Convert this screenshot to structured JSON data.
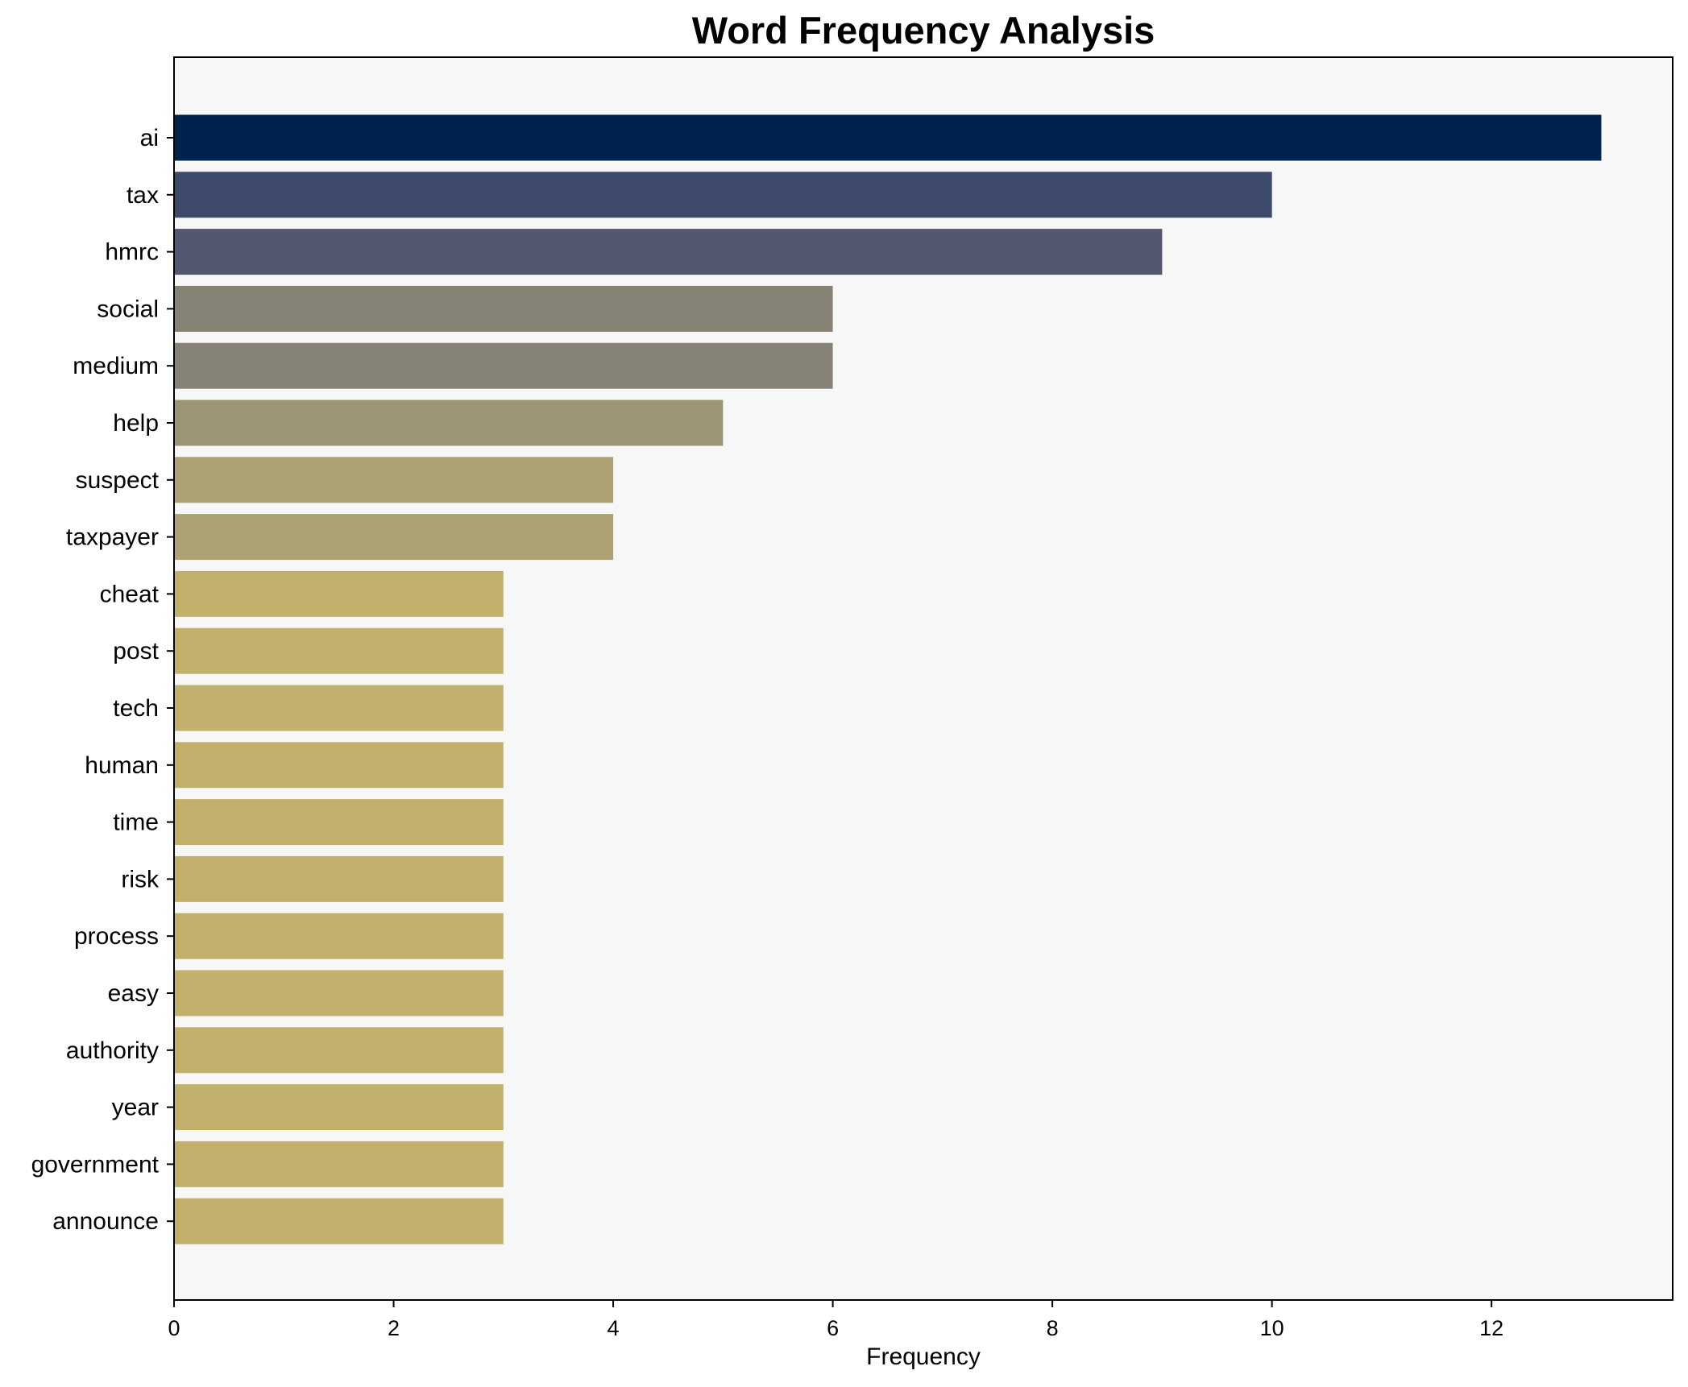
{
  "chart_data": {
    "type": "bar",
    "orientation": "horizontal",
    "title": "Word Frequency Analysis",
    "xlabel": "Frequency",
    "ylabel": "",
    "xlim": [
      0,
      13.65
    ],
    "xticks": [
      0,
      2,
      4,
      6,
      8,
      10,
      12
    ],
    "grid": false,
    "legend": "none",
    "plot_background": "#f7f7f7",
    "categories": [
      "ai",
      "tax",
      "hmrc",
      "social",
      "medium",
      "help",
      "suspect",
      "taxpayer",
      "cheat",
      "post",
      "tech",
      "human",
      "time",
      "risk",
      "process",
      "easy",
      "authority",
      "year",
      "government",
      "announce"
    ],
    "values": [
      13,
      10,
      9,
      6,
      6,
      5,
      4,
      4,
      3,
      3,
      3,
      3,
      3,
      3,
      3,
      3,
      3,
      3,
      3,
      3
    ],
    "colors": [
      "#00224e",
      "#3d4a6c",
      "#53576f",
      "#868276",
      "#868276",
      "#9b9575",
      "#ada372",
      "#ada372",
      "#c1b16c",
      "#c1b16c",
      "#c1b16c",
      "#c1b16c",
      "#c1b16c",
      "#c1b16c",
      "#c1b16c",
      "#c1b16c",
      "#c1b16c",
      "#c1b16c",
      "#c1b16c",
      "#c1b16c"
    ]
  }
}
